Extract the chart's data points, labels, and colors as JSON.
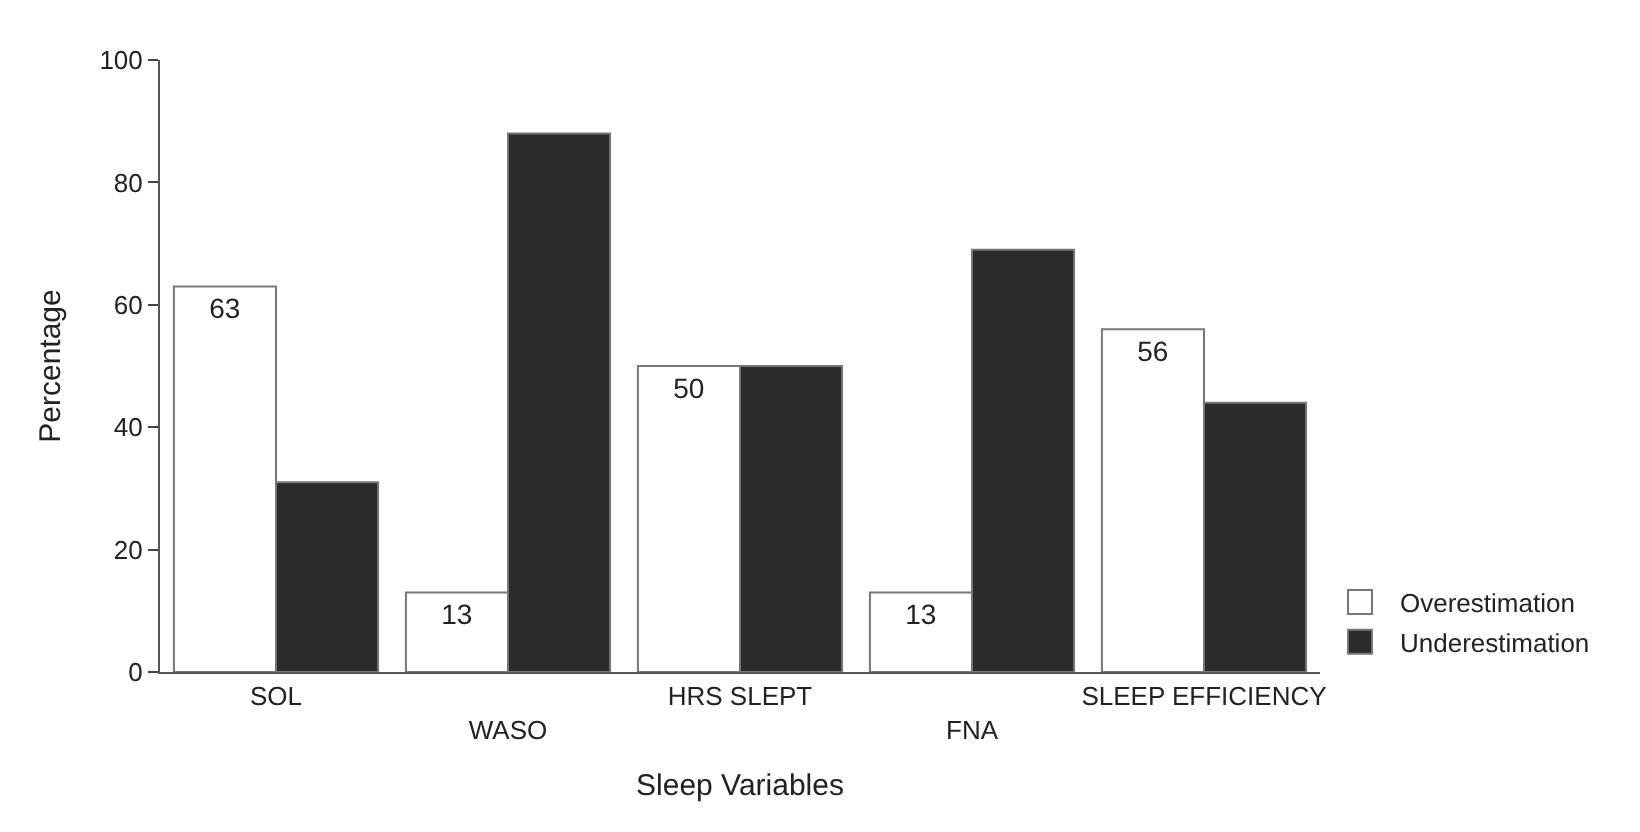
{
  "chart_data": {
    "type": "bar",
    "xlabel": "Sleep Variables",
    "ylabel": "Percentage",
    "categories": [
      "SOL",
      "WASO",
      "HRS SLEPT",
      "FNA",
      "SLEEP EFFICIENCY"
    ],
    "series": [
      {
        "name": "Overestimation",
        "color": "#ffffff",
        "values": [
          63,
          13,
          50,
          13,
          56
        ],
        "value_labels": [
          "63",
          "13",
          "50",
          "13",
          "56"
        ]
      },
      {
        "name": "Underestimation",
        "color": "#2b2b2b",
        "values": [
          31,
          88,
          50,
          69,
          44
        ]
      }
    ],
    "ylim": [
      0,
      100
    ],
    "yticks": [
      0,
      20,
      40,
      60,
      80,
      100
    ],
    "legend": "bottom right"
  }
}
